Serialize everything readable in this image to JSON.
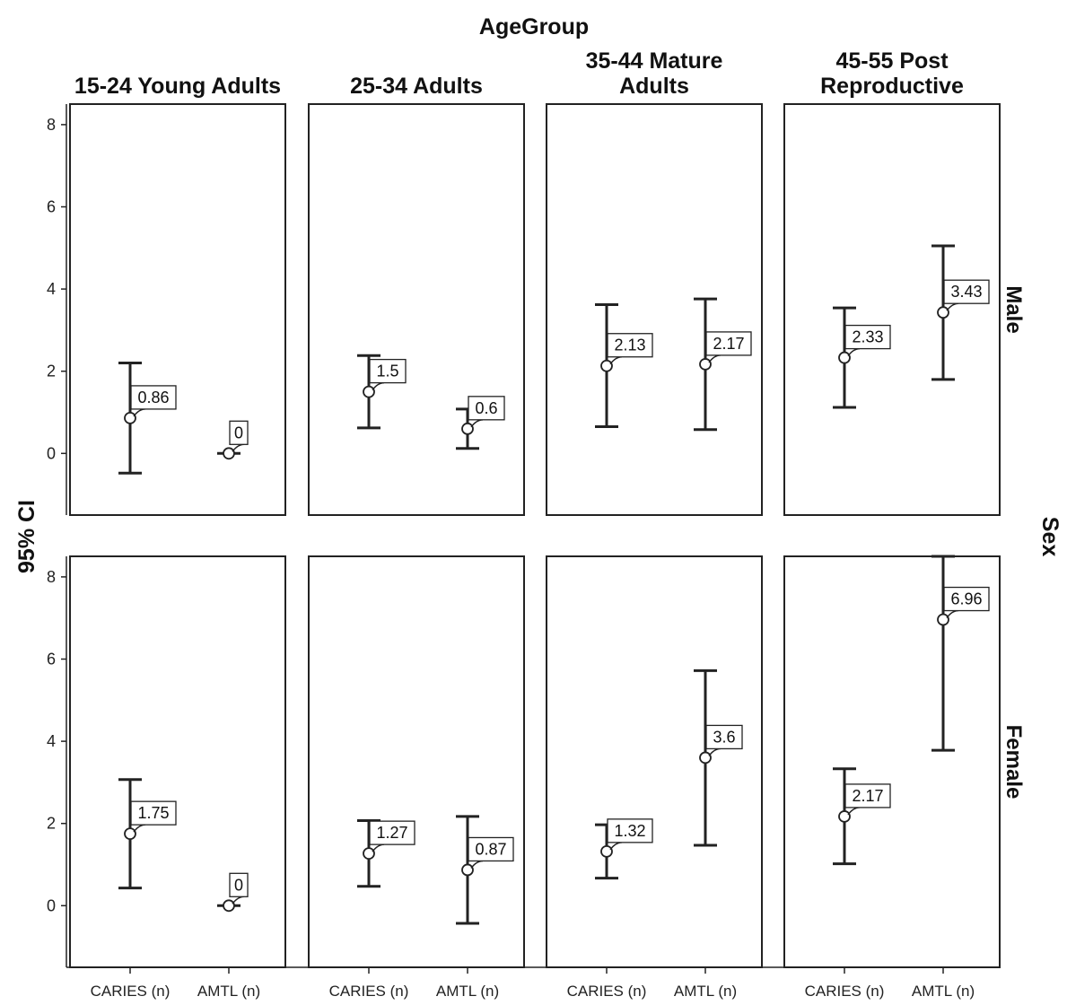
{
  "chart_data": {
    "type": "error-bar",
    "title": "AgeGroup",
    "ylabel": "95% CI",
    "row_axis_label": "Sex",
    "col_panels": [
      "15-24 Young Adults",
      "25-34 Adults",
      "35-44  Mature\nAdults",
      "45-55  Post\nReproductive"
    ],
    "row_panels": [
      "Male",
      "Female"
    ],
    "categories": [
      "CARIES (n)",
      "AMTL (n)"
    ],
    "y_ticks": [
      0,
      2,
      4,
      6,
      8
    ],
    "ylim": [
      -1.5,
      8.5
    ],
    "grid": false,
    "panels": [
      {
        "row": "Male",
        "col": "15-24 Young Adults",
        "points": [
          {
            "category": "CARIES (n)",
            "mean": 0.86,
            "lower": -0.48,
            "upper": 2.2,
            "label": "0.86"
          },
          {
            "category": "AMTL (n)",
            "mean": 0,
            "lower": 0,
            "upper": 0,
            "label": "0"
          }
        ]
      },
      {
        "row": "Male",
        "col": "25-34 Adults",
        "points": [
          {
            "category": "CARIES (n)",
            "mean": 1.5,
            "lower": 0.62,
            "upper": 2.38,
            "label": "1.5"
          },
          {
            "category": "AMTL (n)",
            "mean": 0.6,
            "lower": 0.12,
            "upper": 1.08,
            "label": "0.6"
          }
        ]
      },
      {
        "row": "Male",
        "col": "35-44 Mature Adults",
        "points": [
          {
            "category": "CARIES (n)",
            "mean": 2.13,
            "lower": 0.65,
            "upper": 3.62,
            "label": "2.13"
          },
          {
            "category": "AMTL (n)",
            "mean": 2.17,
            "lower": 0.58,
            "upper": 3.76,
            "label": "2.17"
          }
        ]
      },
      {
        "row": "Male",
        "col": "45-55 Post Reproductive",
        "points": [
          {
            "category": "CARIES (n)",
            "mean": 2.33,
            "lower": 1.12,
            "upper": 3.54,
            "label": "2.33"
          },
          {
            "category": "AMTL (n)",
            "mean": 3.43,
            "lower": 1.8,
            "upper": 5.05,
            "label": "3.43"
          }
        ]
      },
      {
        "row": "Female",
        "col": "15-24 Young Adults",
        "points": [
          {
            "category": "CARIES (n)",
            "mean": 1.75,
            "lower": 0.43,
            "upper": 3.07,
            "label": "1.75"
          },
          {
            "category": "AMTL (n)",
            "mean": 0,
            "lower": 0,
            "upper": 0,
            "label": "0"
          }
        ]
      },
      {
        "row": "Female",
        "col": "25-34 Adults",
        "points": [
          {
            "category": "CARIES (n)",
            "mean": 1.27,
            "lower": 0.47,
            "upper": 2.07,
            "label": "1.27"
          },
          {
            "category": "AMTL (n)",
            "mean": 0.87,
            "lower": -0.43,
            "upper": 2.17,
            "label": "0.87"
          }
        ]
      },
      {
        "row": "Female",
        "col": "35-44 Mature Adults",
        "points": [
          {
            "category": "CARIES (n)",
            "mean": 1.32,
            "lower": 0.67,
            "upper": 1.97,
            "label": "1.32"
          },
          {
            "category": "AMTL (n)",
            "mean": 3.6,
            "lower": 1.47,
            "upper": 5.72,
            "label": "3.6"
          }
        ]
      },
      {
        "row": "Female",
        "col": "45-55 Post Reproductive",
        "points": [
          {
            "category": "CARIES (n)",
            "mean": 2.17,
            "lower": 1.02,
            "upper": 3.33,
            "label": "2.17"
          },
          {
            "category": "AMTL (n)",
            "mean": 6.96,
            "lower": 3.78,
            "upper": 8.5,
            "label": "6.96"
          }
        ]
      }
    ]
  }
}
